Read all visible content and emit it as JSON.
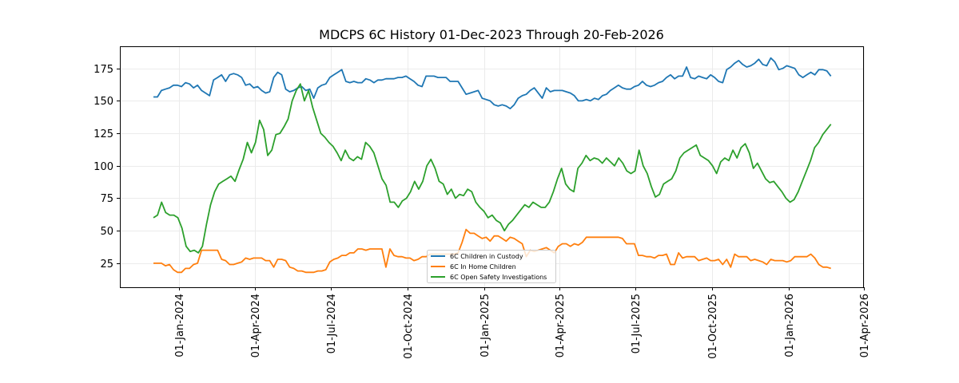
{
  "chart_data": {
    "type": "line",
    "title": "MDCPS 6C History 01-Dec-2023 Through 20-Feb-2026",
    "xlabel": "",
    "ylabel": "",
    "x_start": "2023-12-01",
    "x_end": "2026-02-20",
    "x_sampling": "evenly spaced from x_start to x_end",
    "ylim": [
      6.5,
      192
    ],
    "grid": true,
    "yticks": [
      25,
      50,
      75,
      100,
      125,
      150,
      175
    ],
    "ytick_labels": [
      "25",
      "50",
      "75",
      "100",
      "125",
      "150",
      "175"
    ],
    "xticks": [
      "2024-01-01",
      "2024-04-01",
      "2024-07-01",
      "2024-10-01",
      "2025-01-01",
      "2025-04-01",
      "2025-07-01",
      "2025-10-01",
      "2026-01-01",
      "2026-04-01"
    ],
    "xtick_labels": [
      "01-Jan-2024",
      "01-Apr-2024",
      "01-Jul-2024",
      "01-Oct-2024",
      "01-Jan-2025",
      "01-Apr-2025",
      "01-Jul-2025",
      "01-Oct-2025",
      "01-Jan-2026",
      "01-Apr-2026"
    ],
    "legend_placement": "lower-center",
    "series": [
      {
        "name": "6C Children in Custody",
        "color": "#1f77b4",
        "values": [
          153,
          153,
          158,
          159,
          160,
          162,
          162,
          161,
          164,
          163,
          160,
          162,
          158,
          156,
          154,
          166,
          168,
          170,
          165,
          170,
          171,
          170,
          168,
          162,
          163,
          160,
          161,
          158,
          156,
          157,
          168,
          172,
          170,
          159,
          157,
          158,
          160,
          161,
          158,
          159,
          152,
          160,
          162,
          163,
          168,
          170,
          172,
          174,
          165,
          164,
          165,
          164,
          164,
          167,
          166,
          164,
          166,
          166,
          167,
          167,
          167,
          168,
          168,
          169,
          167,
          165,
          162,
          161,
          169,
          169,
          169,
          168,
          168,
          168,
          165,
          165,
          165,
          160,
          155,
          156,
          157,
          158,
          152,
          151,
          150,
          147,
          146,
          147,
          146,
          144,
          147,
          152,
          154,
          155,
          158,
          160,
          156,
          152,
          160,
          157,
          158,
          158,
          158,
          157,
          156,
          154,
          150,
          150,
          151,
          150,
          152,
          151,
          154,
          155,
          158,
          160,
          162,
          160,
          159,
          159,
          161,
          162,
          165,
          162,
          161,
          162,
          164,
          165,
          168,
          170,
          167,
          169,
          169,
          176,
          168,
          167,
          169,
          168,
          167,
          170,
          168,
          165,
          164,
          174,
          176,
          179,
          181,
          178,
          176,
          177,
          179,
          182,
          178,
          177,
          183,
          180,
          174,
          175,
          177,
          176,
          175,
          170,
          168,
          170,
          172,
          170,
          174,
          174,
          173,
          169
        ]
      },
      {
        "name": "6C In Home Children",
        "color": "#ff7f0e",
        "values": [
          25,
          25,
          25,
          23,
          24,
          20,
          18,
          18,
          21,
          21,
          24,
          25,
          35,
          35,
          35,
          35,
          35,
          28,
          27,
          24,
          24,
          25,
          26,
          29,
          28,
          29,
          29,
          29,
          27,
          27,
          22,
          28,
          28,
          27,
          22,
          21,
          19,
          19,
          18,
          18,
          18,
          19,
          19,
          20,
          26,
          28,
          29,
          31,
          31,
          33,
          33,
          36,
          36,
          35,
          36,
          36,
          36,
          36,
          22,
          36,
          31,
          30,
          30,
          29,
          29,
          27,
          28,
          30,
          30,
          32,
          32,
          32,
          32,
          32,
          32,
          32,
          33,
          41,
          51,
          48,
          48,
          46,
          44,
          45,
          42,
          46,
          46,
          44,
          42,
          45,
          44,
          42,
          40,
          30,
          35,
          34,
          35,
          36,
          37,
          35,
          33,
          38,
          40,
          40,
          38,
          40,
          39,
          41,
          45,
          45,
          45,
          45,
          45,
          45,
          45,
          45,
          45,
          44,
          40,
          40,
          40,
          31,
          31,
          30,
          30,
          29,
          31,
          31,
          32,
          24,
          24,
          33,
          29,
          30,
          30,
          30,
          27,
          28,
          29,
          27,
          27,
          28,
          24,
          28,
          22,
          32,
          30,
          30,
          30,
          27,
          28,
          27,
          26,
          24,
          28,
          27,
          27,
          27,
          26,
          27,
          30,
          30,
          30,
          30,
          32,
          29,
          24,
          22,
          22,
          21
        ]
      },
      {
        "name": "6C Open Safety Investigations",
        "color": "#2ca02c",
        "values": [
          60,
          62,
          72,
          64,
          62,
          62,
          60,
          52,
          38,
          34,
          35,
          33,
          38,
          55,
          70,
          80,
          86,
          88,
          90,
          92,
          88,
          97,
          105,
          118,
          110,
          118,
          135,
          128,
          108,
          112,
          124,
          125,
          130,
          136,
          150,
          158,
          163,
          150,
          158,
          145,
          135,
          125,
          122,
          118,
          115,
          110,
          104,
          112,
          106,
          104,
          107,
          105,
          118,
          115,
          110,
          100,
          90,
          85,
          72,
          72,
          68,
          73,
          75,
          80,
          88,
          82,
          88,
          100,
          105,
          98,
          88,
          86,
          78,
          82,
          75,
          78,
          77,
          82,
          80,
          72,
          68,
          65,
          60,
          62,
          58,
          56,
          50,
          55,
          58,
          62,
          66,
          70,
          68,
          72,
          70,
          68,
          68,
          72,
          80,
          90,
          98,
          86,
          82,
          80,
          98,
          102,
          108,
          104,
          106,
          105,
          102,
          106,
          103,
          100,
          106,
          102,
          96,
          94,
          96,
          112,
          100,
          94,
          84,
          76,
          78,
          86,
          88,
          90,
          96,
          106,
          110,
          112,
          114,
          116,
          108,
          106,
          104,
          100,
          94,
          103,
          106,
          104,
          112,
          106,
          114,
          117,
          110,
          98,
          102,
          96,
          90,
          87,
          88,
          84,
          80,
          75,
          72,
          74,
          80,
          88,
          96,
          104,
          114,
          118,
          124,
          128,
          132
        ]
      }
    ]
  }
}
